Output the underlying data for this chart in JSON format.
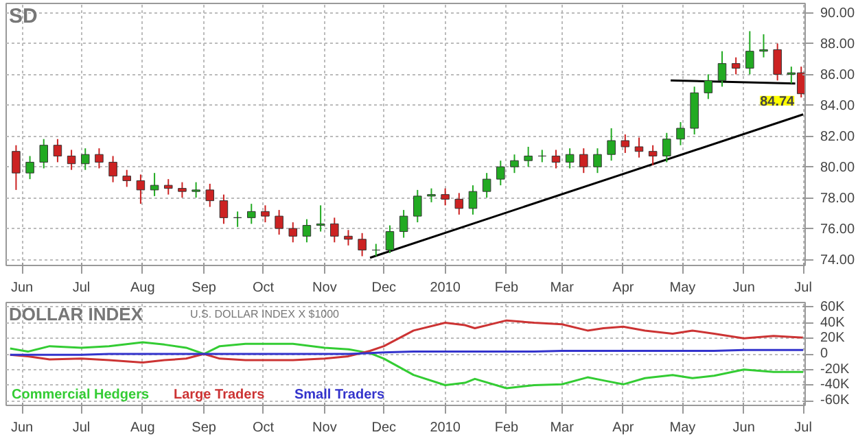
{
  "chart_data": [
    {
      "type": "candlestick",
      "title": "SD",
      "grid": true,
      "x": [
        "2009-05-29",
        "2009-06-05",
        "2009-06-12",
        "2009-06-19",
        "2009-06-26",
        "2009-07-03",
        "2009-07-10",
        "2009-07-17",
        "2009-07-24",
        "2009-07-31",
        "2009-08-07",
        "2009-08-14",
        "2009-08-21",
        "2009-08-28",
        "2009-09-04",
        "2009-09-11",
        "2009-09-18",
        "2009-09-25",
        "2009-10-02",
        "2009-10-09",
        "2009-10-16",
        "2009-10-23",
        "2009-10-30",
        "2009-11-06",
        "2009-11-13",
        "2009-11-20",
        "2009-11-27",
        "2009-12-04",
        "2009-12-11",
        "2009-12-18",
        "2009-12-25",
        "2010-01-01",
        "2010-01-08",
        "2010-01-15",
        "2010-01-22",
        "2010-01-29",
        "2010-02-05",
        "2010-02-12",
        "2010-02-19",
        "2010-02-26",
        "2010-03-05",
        "2010-03-12",
        "2010-03-19",
        "2010-03-26",
        "2010-04-02",
        "2010-04-09",
        "2010-04-16",
        "2010-04-23",
        "2010-04-30",
        "2010-05-07",
        "2010-05-14",
        "2010-05-21",
        "2010-05-28",
        "2010-06-04",
        "2010-06-11",
        "2010-06-18",
        "2010-06-25",
        "2010-06-30"
      ],
      "ohlc": [
        [
          81.0,
          81.4,
          78.5,
          79.6
        ],
        [
          79.6,
          80.7,
          79.2,
          80.3
        ],
        [
          80.3,
          81.8,
          79.9,
          81.4
        ],
        [
          81.4,
          81.8,
          80.3,
          80.7
        ],
        [
          80.7,
          81.1,
          79.8,
          80.2
        ],
        [
          80.2,
          81.2,
          79.8,
          80.8
        ],
        [
          80.8,
          81.2,
          79.9,
          80.3
        ],
        [
          80.3,
          80.7,
          79.0,
          79.4
        ],
        [
          79.4,
          79.8,
          78.7,
          79.1
        ],
        [
          79.1,
          79.5,
          77.6,
          78.5
        ],
        [
          78.5,
          79.6,
          78.1,
          78.8
        ],
        [
          78.8,
          79.2,
          78.2,
          78.6
        ],
        [
          78.6,
          79.0,
          78.0,
          78.4
        ],
        [
          78.4,
          79.0,
          78.0,
          78.5
        ],
        [
          78.5,
          78.9,
          77.4,
          77.8
        ],
        [
          77.8,
          78.2,
          76.3,
          76.7
        ],
        [
          76.7,
          77.1,
          76.1,
          76.7
        ],
        [
          76.7,
          77.6,
          76.3,
          77.1
        ],
        [
          77.1,
          77.5,
          76.4,
          76.8
        ],
        [
          76.8,
          77.2,
          75.6,
          76.0
        ],
        [
          76.0,
          76.4,
          75.1,
          75.5
        ],
        [
          75.5,
          76.6,
          75.1,
          76.2
        ],
        [
          76.2,
          77.5,
          75.8,
          76.3
        ],
        [
          76.3,
          76.7,
          75.1,
          75.5
        ],
        [
          75.5,
          75.9,
          74.9,
          75.3
        ],
        [
          75.3,
          75.7,
          74.2,
          74.6
        ],
        [
          74.6,
          75.0,
          74.2,
          74.6
        ],
        [
          74.6,
          76.2,
          74.4,
          75.8
        ],
        [
          75.8,
          77.2,
          75.4,
          76.8
        ],
        [
          76.8,
          78.5,
          76.4,
          78.1
        ],
        [
          78.1,
          78.6,
          77.7,
          78.2
        ],
        [
          78.2,
          78.6,
          77.5,
          77.9
        ],
        [
          77.9,
          78.3,
          76.9,
          77.3
        ],
        [
          77.3,
          78.8,
          76.9,
          78.4
        ],
        [
          78.4,
          79.6,
          78.0,
          79.2
        ],
        [
          79.2,
          80.4,
          78.8,
          80.0
        ],
        [
          80.0,
          80.8,
          79.6,
          80.4
        ],
        [
          80.4,
          81.3,
          80.0,
          80.7
        ],
        [
          80.7,
          81.1,
          80.3,
          80.7
        ],
        [
          80.7,
          81.1,
          79.9,
          80.3
        ],
        [
          80.3,
          81.2,
          79.9,
          80.8
        ],
        [
          80.8,
          81.2,
          79.6,
          80.0
        ],
        [
          80.0,
          81.2,
          79.6,
          80.8
        ],
        [
          80.8,
          82.5,
          80.4,
          81.7
        ],
        [
          81.7,
          82.1,
          80.9,
          81.3
        ],
        [
          81.3,
          81.9,
          80.6,
          81.0
        ],
        [
          81.0,
          81.4,
          80.1,
          80.7
        ],
        [
          80.7,
          82.2,
          80.3,
          81.8
        ],
        [
          81.8,
          82.9,
          81.4,
          82.5
        ],
        [
          82.5,
          85.2,
          82.1,
          84.8
        ],
        [
          84.8,
          86.0,
          84.4,
          85.6
        ],
        [
          85.6,
          87.5,
          85.2,
          86.7
        ],
        [
          86.7,
          87.1,
          86.0,
          86.4
        ],
        [
          86.4,
          88.8,
          86.0,
          87.5
        ],
        [
          87.5,
          88.6,
          87.1,
          87.6
        ],
        [
          87.6,
          88.0,
          85.6,
          86.0
        ],
        [
          86.0,
          86.5,
          85.4,
          86.1
        ],
        [
          86.1,
          86.5,
          84.5,
          84.74
        ]
      ],
      "series": [
        {
          "type": "line",
          "color": "#000000",
          "x": [
            "2009-11-24",
            "2010-07-01"
          ],
          "values": [
            74.1,
            83.4
          ]
        },
        {
          "type": "line",
          "color": "#000000",
          "x": [
            "2010-04-25",
            "2010-06-27"
          ],
          "values": [
            85.6,
            85.4
          ]
        }
      ],
      "annotations": [
        {
          "text": "84.74",
          "x": "2010-06-30",
          "y": 84.74
        }
      ],
      "xlim": [
        "2009-05-24",
        "2010-07-02"
      ],
      "ylim": [
        73.6,
        90.6
      ],
      "xticks": [
        {
          "value": "2009-06-01",
          "label": "Jun"
        },
        {
          "value": "2009-07-01",
          "label": "Jul"
        },
        {
          "value": "2009-08-01",
          "label": "Aug"
        },
        {
          "value": "2009-09-01",
          "label": "Sep"
        },
        {
          "value": "2009-10-01",
          "label": "Oct"
        },
        {
          "value": "2009-11-01",
          "label": "Nov"
        },
        {
          "value": "2009-12-01",
          "label": "Dec"
        },
        {
          "value": "2010-01-01",
          "label": "2010"
        },
        {
          "value": "2010-02-01",
          "label": "Feb"
        },
        {
          "value": "2010-03-01",
          "label": "Mar"
        },
        {
          "value": "2010-04-01",
          "label": "Apr"
        },
        {
          "value": "2010-05-01",
          "label": "May"
        },
        {
          "value": "2010-06-01",
          "label": "Jun"
        },
        {
          "value": "2010-07-01",
          "label": "Jul"
        }
      ],
      "yticks": [
        {
          "value": 74,
          "label": "74.00"
        },
        {
          "value": 76,
          "label": "76.00"
        },
        {
          "value": 78,
          "label": "78.00"
        },
        {
          "value": 80,
          "label": "80.00"
        },
        {
          "value": 82,
          "label": "82.00"
        },
        {
          "value": 84,
          "label": "84.00"
        },
        {
          "value": 86,
          "label": "86.00"
        },
        {
          "value": 88,
          "label": "88.00"
        },
        {
          "value": 90,
          "label": "90.00"
        }
      ]
    },
    {
      "type": "line",
      "title": "DOLLAR INDEX",
      "subtitle": "U.S. DOLLAR INDEX X $1000",
      "grid": true,
      "legend": "bottom left",
      "x": [
        "2009-05-26",
        "2009-06-04",
        "2009-06-15",
        "2009-07-01",
        "2009-07-15",
        "2009-08-01",
        "2009-08-12",
        "2009-08-23",
        "2009-09-01",
        "2009-09-09",
        "2009-09-22",
        "2009-10-01",
        "2009-10-16",
        "2009-11-01",
        "2009-11-13",
        "2009-11-24",
        "2009-12-01",
        "2009-12-16",
        "2010-01-01",
        "2010-01-11",
        "2010-01-16",
        "2010-02-01",
        "2010-02-15",
        "2010-03-01",
        "2010-03-14",
        "2010-03-22",
        "2010-04-01",
        "2010-04-12",
        "2010-04-26",
        "2010-05-06",
        "2010-05-17",
        "2010-06-01",
        "2010-06-16",
        "2010-07-01"
      ],
      "series": [
        {
          "name": "Commercial Hedgers",
          "color": "#33cc33",
          "values": [
            7000,
            3000,
            10000,
            8000,
            10000,
            15000,
            12000,
            8000,
            0,
            10000,
            13000,
            13000,
            13000,
            8000,
            6000,
            1000,
            -6000,
            -27000,
            -40000,
            -37000,
            -32000,
            -44000,
            -40000,
            -39000,
            -30000,
            -34000,
            -39000,
            -31000,
            -27000,
            -31000,
            -28000,
            -20000,
            -23000,
            -23000
          ]
        },
        {
          "name": "Large Traders",
          "color": "#cc3333",
          "values": [
            -1000,
            -3000,
            -7000,
            -6000,
            -8000,
            -11000,
            -8000,
            -6000,
            0,
            -6000,
            -8000,
            -8000,
            -8000,
            -6000,
            -3000,
            4000,
            10000,
            30000,
            40000,
            37000,
            33000,
            43000,
            40000,
            38000,
            30000,
            33000,
            35000,
            30000,
            26000,
            30000,
            26000,
            20000,
            23000,
            21000
          ]
        },
        {
          "name": "Small Traders",
          "color": "#3333cc",
          "values": [
            -1000,
            -1000,
            -1000,
            -1000,
            0,
            0,
            0,
            0,
            0,
            0,
            0,
            0,
            0,
            0,
            0,
            1000,
            2000,
            3000,
            3000,
            3000,
            3000,
            3000,
            3000,
            4000,
            4000,
            4000,
            4000,
            4000,
            4000,
            4000,
            4000,
            5000,
            5000,
            5000
          ]
        }
      ],
      "xlim": [
        "2009-05-24",
        "2010-07-02"
      ],
      "ylim": [
        -66000,
        66000
      ],
      "xticks": [
        {
          "value": "2009-06-01",
          "label": "Jun"
        },
        {
          "value": "2009-07-01",
          "label": "Jul"
        },
        {
          "value": "2009-08-01",
          "label": "Aug"
        },
        {
          "value": "2009-09-01",
          "label": "Sep"
        },
        {
          "value": "2009-10-01",
          "label": "Oct"
        },
        {
          "value": "2009-11-01",
          "label": "Nov"
        },
        {
          "value": "2009-12-01",
          "label": "Dec"
        },
        {
          "value": "2010-01-01",
          "label": "2010"
        },
        {
          "value": "2010-02-01",
          "label": "Feb"
        },
        {
          "value": "2010-03-01",
          "label": "Mar"
        },
        {
          "value": "2010-04-01",
          "label": "Apr"
        },
        {
          "value": "2010-05-01",
          "label": "May"
        },
        {
          "value": "2010-06-01",
          "label": "Jun"
        },
        {
          "value": "2010-07-01",
          "label": "Jul"
        }
      ],
      "yticks": [
        {
          "value": -60000,
          "label": "-60K"
        },
        {
          "value": -40000,
          "label": "-40K"
        },
        {
          "value": -20000,
          "label": "-20K"
        },
        {
          "value": 0,
          "label": "0"
        },
        {
          "value": 20000,
          "label": "20K"
        },
        {
          "value": 40000,
          "label": "40K"
        },
        {
          "value": 60000,
          "label": "60K"
        }
      ]
    }
  ]
}
